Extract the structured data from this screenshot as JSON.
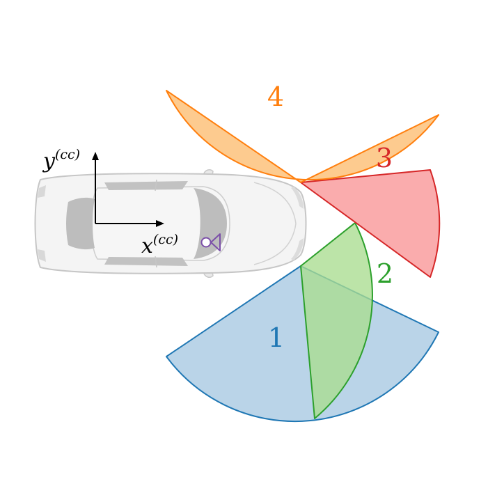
{
  "sectors": [
    {
      "label": "1",
      "color": "#1f77b4",
      "fill": "#a6c8e1"
    },
    {
      "label": "2",
      "color": "#2ca02c",
      "fill": "#a9dc8f"
    },
    {
      "label": "3",
      "color": "#d62728",
      "fill": "#f99596"
    },
    {
      "label": "4",
      "color": "#ff7f0e",
      "fill": "#fdbd70"
    }
  ],
  "axes": {
    "y_label": "y",
    "y_superscript": "(cc)",
    "x_label": "x",
    "x_superscript": "(cc)"
  },
  "vehicle": {
    "icon": "car-top-view-icon",
    "color": "#e6e6e6"
  },
  "sensor": {
    "icon": "camera-sensor-icon",
    "color": "#7b4fa8"
  }
}
